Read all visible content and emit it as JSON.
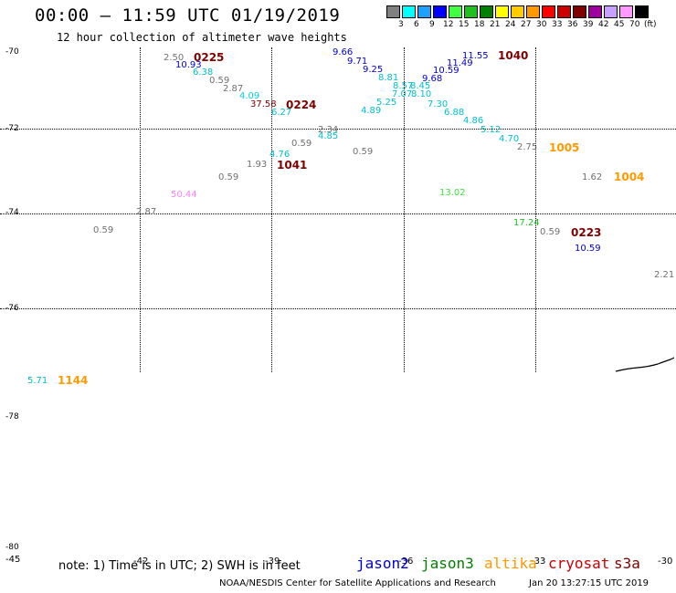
{
  "header": {
    "title": "00:00 – 11:59 UTC 01/19/2019",
    "subtitle": "12 hour collection of altimeter wave heights"
  },
  "colorbar": {
    "unit": "(ft)",
    "swatches": [
      "#808080",
      "#00ffff",
      "#1ea0ff",
      "#0000ff",
      "#40ff40",
      "#20c020",
      "#008000",
      "#ffff00",
      "#ffcc00",
      "#ff9900",
      "#ff0000",
      "#cc0000",
      "#800000",
      "#a000a0",
      "#c8a0ff",
      "#ff99ff",
      "#000000"
    ],
    "labels": [
      "3",
      "6",
      "9",
      "12",
      "15",
      "18",
      "21",
      "24",
      "27",
      "30",
      "33",
      "36",
      "39",
      "42",
      "45",
      "70"
    ]
  },
  "axes": {
    "lat_labels": [
      "-70",
      "-72",
      "-74",
      "-76",
      "-78",
      "-80"
    ],
    "lon_labels": [
      "-45",
      "-42",
      "-39",
      "-36",
      "-33",
      "-30"
    ]
  },
  "wave_points": [
    {
      "text": "2.50",
      "color": "#707070"
    },
    {
      "text": "10.93",
      "color": "#0000cc"
    },
    {
      "text": "6.38",
      "color": "#00c0d0"
    },
    {
      "text": "0.59",
      "color": "#707070"
    },
    {
      "text": "2.87",
      "color": "#707070"
    },
    {
      "text": "4.09",
      "color": "#00d0e0"
    },
    {
      "text": "37.58",
      "color": "#800000"
    },
    {
      "text": "6.27",
      "color": "#00c0d0"
    },
    {
      "text": "9.66",
      "color": "#0000cc"
    },
    {
      "text": "9.71",
      "color": "#0000cc"
    },
    {
      "text": "9.25",
      "color": "#0000cc"
    },
    {
      "text": "8.81",
      "color": "#00c0d0"
    },
    {
      "text": "8.57",
      "color": "#00c0d0"
    },
    {
      "text": "8.45",
      "color": "#00c0d0"
    },
    {
      "text": "7.07",
      "color": "#00c0d0"
    },
    {
      "text": "8.10",
      "color": "#00c0d0"
    },
    {
      "text": "5.25",
      "color": "#00c0d0"
    },
    {
      "text": "4.89",
      "color": "#00c0d0"
    },
    {
      "text": "11.55",
      "color": "#0000cc"
    },
    {
      "text": "11.49",
      "color": "#0000cc"
    },
    {
      "text": "10.59",
      "color": "#0000cc"
    },
    {
      "text": "9.68",
      "color": "#0000cc"
    },
    {
      "text": "7.30",
      "color": "#00c0d0"
    },
    {
      "text": "6.88",
      "color": "#00c0d0"
    },
    {
      "text": "4.86",
      "color": "#00c0d0"
    },
    {
      "text": "5.12",
      "color": "#00c0d0"
    },
    {
      "text": "4.70",
      "color": "#00c0d0"
    },
    {
      "text": "2.75",
      "color": "#707070"
    },
    {
      "text": "2.34",
      "color": "#707070"
    },
    {
      "text": "4.85",
      "color": "#00c0d0"
    },
    {
      "text": "0.59",
      "color": "#707070"
    },
    {
      "text": "0.59",
      "color": "#707070"
    },
    {
      "text": "4.76",
      "color": "#00c0d0"
    },
    {
      "text": "1.93",
      "color": "#707070"
    },
    {
      "text": "0.59",
      "color": "#707070"
    },
    {
      "text": "50.44",
      "color": "#ff80ff"
    },
    {
      "text": "2.87",
      "color": "#707070"
    },
    {
      "text": "0.59",
      "color": "#707070"
    },
    {
      "text": "13.02",
      "color": "#40e040"
    },
    {
      "text": "17.24",
      "color": "#20c020"
    },
    {
      "text": "0.59",
      "color": "#707070"
    },
    {
      "text": "10.59",
      "color": "#0000cc"
    },
    {
      "text": "1.62",
      "color": "#707070"
    },
    {
      "text": "2.21",
      "color": "#707070"
    },
    {
      "text": "5.71",
      "color": "#00c0d0"
    }
  ],
  "satellite_labels": [
    {
      "text": "0225",
      "color": "#800000"
    },
    {
      "text": "0224",
      "color": "#800000"
    },
    {
      "text": "1040",
      "color": "#800000"
    },
    {
      "text": "1041",
      "color": "#800000"
    },
    {
      "text": "1005",
      "color": "#ff9900"
    },
    {
      "text": "1004",
      "color": "#ff9900"
    },
    {
      "text": "0223",
      "color": "#800000"
    },
    {
      "text": "1144",
      "color": "#ff9900"
    }
  ],
  "footer": {
    "note": "note: 1) Time is in UTC; 2) SWH is in feet",
    "legend": [
      {
        "text": "jason2",
        "color": "#0000cc"
      },
      {
        "text": "jason3",
        "color": "#008000"
      },
      {
        "text": "altika",
        "color": "#ff9900"
      },
      {
        "text": "cryosat",
        "color": "#cc0000"
      },
      {
        "text": "s3a",
        "color": "#800000"
      }
    ],
    "credit": "NOAA/NESDIS Center for Satellite Applications and Research",
    "datestamp": "Jan 20 13:27:15 UTC 2019"
  }
}
